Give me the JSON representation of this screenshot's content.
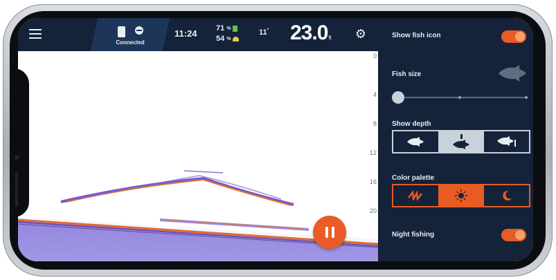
{
  "topbar": {
    "menu_icon": "hamburger-menu-icon",
    "connection_label": "Connected",
    "time": "11:24",
    "phone_battery": "71",
    "device_battery": "54",
    "water_temp": "11",
    "depth_value": "23.0",
    "depth_unit": "ft",
    "settings_icon": "gear-icon"
  },
  "depth_scale": [
    "0",
    "4",
    "8",
    "12",
    "16",
    "20"
  ],
  "panel": {
    "show_fish_icon": {
      "label": "Show fish icon",
      "enabled": true
    },
    "fish_size": {
      "label": "Fish size",
      "level": 0
    },
    "show_depth": {
      "label": "Show depth",
      "options": [
        "fish-icon",
        "fish-depth-above-icon",
        "fish-depth-right-icon"
      ],
      "selected": 1
    },
    "color_palette": {
      "label": "Color palette",
      "options": [
        "fish-palette-icon",
        "sun-icon",
        "moon-icon"
      ],
      "selected": 1
    },
    "night_fishing": {
      "label": "Night fishing",
      "enabled": true
    }
  },
  "colors": {
    "accent": "#e75b24",
    "panel_bg": "#14233a",
    "topbar_bg": "#14233a"
  },
  "pause_icon": "pause-icon"
}
